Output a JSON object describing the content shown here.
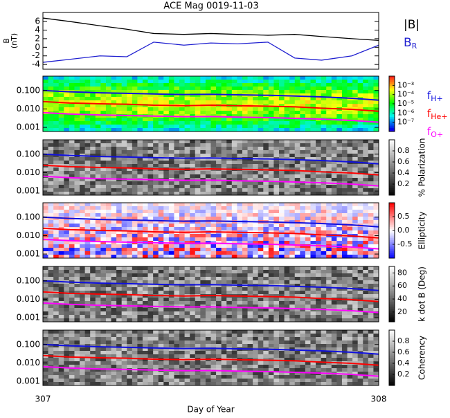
{
  "chart_data": [
    {
      "type": "line",
      "title": "ACE Mag 0019-11-03",
      "ylabel": [
        "B",
        "(nT)"
      ],
      "x": [
        307.0,
        307.08,
        307.17,
        307.25,
        307.33,
        307.42,
        307.5,
        307.58,
        307.67,
        307.75,
        307.83,
        307.92,
        308.0
      ],
      "xlim": [
        307,
        308
      ],
      "ylim": [
        -5.1,
        8.1
      ],
      "yticks": [
        6,
        4,
        2,
        0,
        -2,
        -4
      ],
      "series": [
        {
          "name": "|B|",
          "color": "#000000",
          "values": [
            6.8,
            6.0,
            5.0,
            4.2,
            3.2,
            3.0,
            3.2,
            3.0,
            2.8,
            3.0,
            2.5,
            2.0,
            1.6
          ]
        },
        {
          "name": "BR",
          "color": "#1f1fd0",
          "values": [
            -3.5,
            -2.8,
            -2.0,
            -2.2,
            1.2,
            0.5,
            1.0,
            0.8,
            1.2,
            -2.5,
            -3.0,
            -2.0,
            0.5
          ]
        }
      ]
    },
    {
      "type": "spectrogram",
      "cmap": "rainbow",
      "log_y": true,
      "xlim": [
        307,
        308
      ],
      "ylim": [
        0.0006,
        0.6
      ],
      "yticks": [
        {
          "value": 0.1,
          "label": "0.100"
        },
        {
          "value": 0.01,
          "label": "0.010"
        },
        {
          "value": 0.001,
          "label": "0.001"
        }
      ],
      "x": [
        307.0,
        307.08,
        307.17,
        307.25,
        307.33,
        307.42,
        307.5,
        307.58,
        307.67,
        307.75,
        307.83,
        307.92,
        308.0
      ],
      "series": [
        {
          "name": "fH+",
          "color": "#1010e0",
          "values": [
            0.1,
            0.085,
            0.075,
            0.07,
            0.065,
            0.06,
            0.062,
            0.058,
            0.055,
            0.05,
            0.045,
            0.038,
            0.03
          ]
        },
        {
          "name": "fHe+",
          "color": "#ff0000",
          "values": [
            0.025,
            0.021,
            0.019,
            0.018,
            0.016,
            0.015,
            0.016,
            0.015,
            0.014,
            0.013,
            0.011,
            0.0095,
            0.0075
          ]
        },
        {
          "name": "fO+",
          "color": "#ff00ff",
          "values": [
            0.0063,
            0.0053,
            0.0047,
            0.0044,
            0.0041,
            0.0038,
            0.0039,
            0.0036,
            0.0034,
            0.0031,
            0.0028,
            0.0024,
            0.0019
          ]
        }
      ],
      "colorbar": {
        "lim": [
          -8,
          -2
        ],
        "ticks": [
          {
            "value": -3,
            "label": "10⁻³"
          },
          {
            "value": -4,
            "label": "10⁻⁴"
          },
          {
            "value": -5,
            "label": "10⁻⁵"
          },
          {
            "value": -6,
            "label": "10⁻⁶"
          },
          {
            "value": -7,
            "label": "10⁻⁷"
          }
        ]
      }
    },
    {
      "type": "spectrogram",
      "cmap": "gray",
      "log_y": true,
      "xlim": [
        307,
        308
      ],
      "ylim": [
        0.0006,
        0.6
      ],
      "yticks": [
        {
          "value": 0.1,
          "label": "0.100"
        },
        {
          "value": 0.01,
          "label": "0.010"
        },
        {
          "value": 0.001,
          "label": "0.001"
        }
      ],
      "colorbar": {
        "lim": [
          0,
          1
        ],
        "ticks": [
          0.2,
          0.4,
          0.6,
          0.8
        ],
        "label": "% Polarization"
      }
    },
    {
      "type": "spectrogram",
      "cmap": "bwr",
      "log_y": true,
      "xlim": [
        307,
        308
      ],
      "ylim": [
        0.0006,
        0.6
      ],
      "yticks": [
        {
          "value": 0.1,
          "label": "0.100"
        },
        {
          "value": 0.01,
          "label": "0.010"
        },
        {
          "value": 0.001,
          "label": "0.001"
        }
      ],
      "colorbar": {
        "lim": [
          -1,
          1
        ],
        "ticks": [
          0.5,
          {
            "value": 0,
            "label": "0.0"
          },
          -0.5
        ],
        "label": "Ellipticity"
      }
    },
    {
      "type": "spectrogram",
      "cmap": "gray",
      "log_y": true,
      "xlim": [
        307,
        308
      ],
      "ylim": [
        0.0006,
        0.6
      ],
      "yticks": [
        {
          "value": 0.1,
          "label": "0.100"
        },
        {
          "value": 0.01,
          "label": "0.010"
        },
        {
          "value": 0.001,
          "label": "0.001"
        }
      ],
      "colorbar": {
        "lim": [
          5,
          90
        ],
        "ticks": [
          20,
          40,
          60,
          80
        ],
        "label": "k dot B (Deg)"
      }
    },
    {
      "type": "spectrogram",
      "cmap": "gray",
      "log_y": true,
      "xlim": [
        307,
        308
      ],
      "ylim": [
        0.0006,
        0.6
      ],
      "yticks": [
        {
          "value": 0.1,
          "label": "0.100"
        },
        {
          "value": 0.01,
          "label": "0.010"
        },
        {
          "value": 0.001,
          "label": "0.001"
        }
      ],
      "colorbar": {
        "lim": [
          0,
          1
        ],
        "ticks": [
          0.2,
          0.4,
          0.6,
          0.8
        ],
        "label": "Coherency"
      },
      "xticks": [
        307,
        308
      ],
      "xlabel": "Day of Year"
    }
  ]
}
